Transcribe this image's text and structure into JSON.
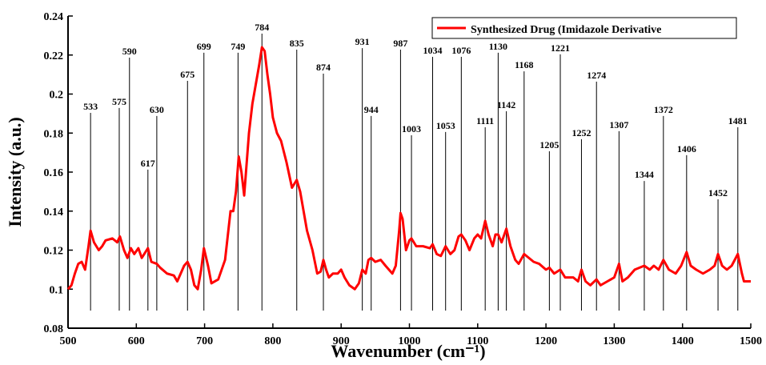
{
  "chart_data": {
    "type": "line",
    "x_label": "Wavenumber (cm⁻¹)",
    "y_label": "Intensity (a.u.)",
    "xlim": [
      500,
      1500
    ],
    "ylim": [
      0.08,
      0.24
    ],
    "xticks": [
      500,
      600,
      700,
      800,
      900,
      1000,
      1100,
      1200,
      1300,
      1400,
      1500
    ],
    "yticks": [
      0.08,
      0.1,
      0.12,
      0.14,
      0.16,
      0.18,
      0.2,
      0.22,
      0.24
    ],
    "legend": "upper right",
    "x": [
      500,
      505,
      510,
      515,
      520,
      525,
      530,
      533,
      538,
      545,
      550,
      555,
      565,
      572,
      576,
      582,
      587,
      592,
      597,
      603,
      608,
      617,
      622,
      630,
      635,
      645,
      655,
      660,
      665,
      670,
      675,
      680,
      685,
      690,
      695,
      699,
      705,
      710,
      720,
      730,
      738,
      742,
      746,
      750,
      754,
      758,
      765,
      770,
      775,
      780,
      784,
      788,
      792,
      796,
      800,
      806,
      812,
      820,
      828,
      835,
      840,
      845,
      850,
      858,
      865,
      870,
      874,
      878,
      882,
      888,
      895,
      900,
      905,
      912,
      920,
      926,
      931,
      936,
      940,
      944,
      950,
      958,
      965,
      970,
      975,
      980,
      985,
      987,
      990,
      995,
      1000,
      1003,
      1010,
      1020,
      1030,
      1034,
      1040,
      1046,
      1053,
      1060,
      1066,
      1072,
      1076,
      1082,
      1088,
      1095,
      1100,
      1105,
      1111,
      1116,
      1122,
      1126,
      1130,
      1135,
      1142,
      1148,
      1155,
      1160,
      1168,
      1175,
      1182,
      1190,
      1200,
      1205,
      1212,
      1221,
      1228,
      1240,
      1247,
      1252,
      1258,
      1265,
      1274,
      1280,
      1290,
      1300,
      1307,
      1312,
      1320,
      1330,
      1344,
      1352,
      1358,
      1365,
      1372,
      1380,
      1390,
      1398,
      1406,
      1412,
      1420,
      1430,
      1440,
      1447,
      1452,
      1458,
      1465,
      1472,
      1481,
      1487,
      1490,
      1500
    ],
    "series": [
      {
        "name": "Synthesized Drug (Imidazole Derivative",
        "color": "#ff0000",
        "values": [
          0.1,
          0.102,
          0.108,
          0.113,
          0.114,
          0.11,
          0.122,
          0.13,
          0.124,
          0.12,
          0.122,
          0.125,
          0.126,
          0.124,
          0.127,
          0.12,
          0.116,
          0.121,
          0.118,
          0.121,
          0.116,
          0.121,
          0.114,
          0.113,
          0.111,
          0.108,
          0.107,
          0.104,
          0.108,
          0.112,
          0.114,
          0.11,
          0.102,
          0.1,
          0.11,
          0.121,
          0.112,
          0.103,
          0.105,
          0.115,
          0.14,
          0.14,
          0.15,
          0.168,
          0.16,
          0.148,
          0.18,
          0.195,
          0.205,
          0.215,
          0.224,
          0.222,
          0.21,
          0.2,
          0.188,
          0.18,
          0.176,
          0.165,
          0.152,
          0.156,
          0.15,
          0.14,
          0.13,
          0.12,
          0.108,
          0.109,
          0.115,
          0.11,
          0.106,
          0.108,
          0.108,
          0.11,
          0.106,
          0.102,
          0.1,
          0.103,
          0.11,
          0.108,
          0.115,
          0.116,
          0.114,
          0.115,
          0.112,
          0.11,
          0.108,
          0.112,
          0.13,
          0.139,
          0.136,
          0.12,
          0.125,
          0.126,
          0.122,
          0.122,
          0.121,
          0.123,
          0.118,
          0.117,
          0.122,
          0.118,
          0.12,
          0.127,
          0.128,
          0.125,
          0.12,
          0.126,
          0.128,
          0.126,
          0.135,
          0.128,
          0.122,
          0.128,
          0.128,
          0.124,
          0.131,
          0.122,
          0.115,
          0.113,
          0.118,
          0.116,
          0.114,
          0.113,
          0.11,
          0.111,
          0.108,
          0.11,
          0.106,
          0.106,
          0.104,
          0.11,
          0.104,
          0.102,
          0.105,
          0.102,
          0.104,
          0.106,
          0.113,
          0.104,
          0.106,
          0.11,
          0.112,
          0.11,
          0.112,
          0.11,
          0.115,
          0.11,
          0.108,
          0.112,
          0.119,
          0.112,
          0.11,
          0.108,
          0.11,
          0.112,
          0.118,
          0.112,
          0.11,
          0.112,
          0.118,
          0.108,
          0.104,
          0.104
        ]
      }
    ],
    "annotations": [
      {
        "text": "533",
        "x": 533,
        "y": 0.192
      },
      {
        "text": "575",
        "x": 575,
        "y": 0.1945
      },
      {
        "text": "590",
        "x": 590,
        "y": 0.2203
      },
      {
        "text": "617",
        "x": 617,
        "y": 0.1629
      },
      {
        "text": "630",
        "x": 630,
        "y": 0.1904
      },
      {
        "text": "675",
        "x": 675,
        "y": 0.2084
      },
      {
        "text": "699",
        "x": 699,
        "y": 0.2228
      },
      {
        "text": "749",
        "x": 749,
        "y": 0.2228
      },
      {
        "text": "784",
        "x": 784,
        "y": 0.2326
      },
      {
        "text": "835",
        "x": 835,
        "y": 0.2244
      },
      {
        "text": "874",
        "x": 874,
        "y": 0.2121
      },
      {
        "text": "931",
        "x": 931,
        "y": 0.2252
      },
      {
        "text": "944",
        "x": 944,
        "y": 0.1904
      },
      {
        "text": "987",
        "x": 987,
        "y": 0.2244
      },
      {
        "text": "1003",
        "x": 1003,
        "y": 0.1805
      },
      {
        "text": "1034",
        "x": 1034,
        "y": 0.2207
      },
      {
        "text": "1053",
        "x": 1053,
        "y": 0.1822
      },
      {
        "text": "1076",
        "x": 1076,
        "y": 0.2207
      },
      {
        "text": "1111",
        "x": 1111,
        "y": 0.1846
      },
      {
        "text": "1130",
        "x": 1130,
        "y": 0.2228
      },
      {
        "text": "1142",
        "x": 1142,
        "y": 0.1928
      },
      {
        "text": "1168",
        "x": 1168,
        "y": 0.2133
      },
      {
        "text": "1205",
        "x": 1205,
        "y": 0.1723
      },
      {
        "text": "1221",
        "x": 1221,
        "y": 0.222
      },
      {
        "text": "1252",
        "x": 1252,
        "y": 0.1785
      },
      {
        "text": "1274",
        "x": 1274,
        "y": 0.208
      },
      {
        "text": "1307",
        "x": 1307,
        "y": 0.1826
      },
      {
        "text": "1344",
        "x": 1344,
        "y": 0.1571
      },
      {
        "text": "1372",
        "x": 1372,
        "y": 0.1904
      },
      {
        "text": "1406",
        "x": 1406,
        "y": 0.1703
      },
      {
        "text": "1452",
        "x": 1452,
        "y": 0.1477
      },
      {
        "text": "1481",
        "x": 1481,
        "y": 0.1846
      }
    ]
  }
}
